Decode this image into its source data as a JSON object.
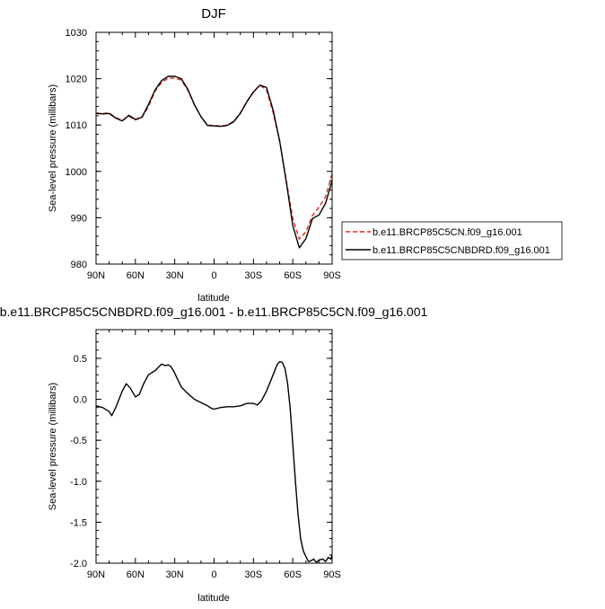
{
  "chart_data": [
    {
      "type": "line",
      "title": "DJF",
      "xlabel": "latitude",
      "ylabel": "Sea-level pressure (millibars)",
      "xlim": [
        90,
        -90
      ],
      "ylim": [
        980,
        1030
      ],
      "x_ticks": [
        90,
        60,
        30,
        0,
        -30,
        -60,
        -90
      ],
      "x_tick_labels": [
        "90N",
        "60N",
        "30N",
        "0",
        "30S",
        "60S",
        "90S"
      ],
      "y_ticks": [
        980,
        990,
        1000,
        1010,
        1020,
        1030
      ],
      "y_tick_labels": [
        "980",
        "990",
        "1000",
        "1010",
        "1020",
        "1030"
      ],
      "grid": false,
      "legend_position": "right",
      "x": [
        90,
        85,
        80,
        75,
        70,
        65,
        60,
        55,
        50,
        45,
        40,
        35,
        30,
        25,
        20,
        15,
        10,
        5,
        0,
        -5,
        -10,
        -15,
        -20,
        -25,
        -30,
        -35,
        -40,
        -45,
        -50,
        -55,
        -60,
        -65,
        -70,
        -75,
        -80,
        -85,
        -90
      ],
      "series": [
        {
          "name": "b.e11.BRCP85C5CN.f09_g16.001",
          "color": "#e8251c",
          "dash": "dashed",
          "values": [
            1012.6,
            1012.5,
            1012.6,
            1011.6,
            1011.0,
            1011.9,
            1011.1,
            1011.6,
            1014.0,
            1017.3,
            1019.2,
            1020.1,
            1020.1,
            1019.7,
            1017.5,
            1014.3,
            1011.8,
            1010.0,
            1009.9,
            1009.8,
            1010.0,
            1010.8,
            1012.6,
            1015.1,
            1017.2,
            1018.6,
            1017.6,
            1012.7,
            1006.5,
            998.1,
            989.8,
            985.4,
            987.0,
            990.5,
            992.3,
            994.5,
            999.5
          ]
        },
        {
          "name": "b.e11.BRCP85C5CNBDRD.f09_g16.001",
          "color": "#000000",
          "dash": "solid",
          "values": [
            1012.5,
            1012.4,
            1012.5,
            1011.5,
            1010.9,
            1012.1,
            1011.2,
            1011.7,
            1014.4,
            1017.6,
            1019.6,
            1020.5,
            1020.5,
            1020.0,
            1017.7,
            1014.4,
            1011.8,
            1009.9,
            1009.8,
            1009.7,
            1009.9,
            1010.7,
            1012.5,
            1015.0,
            1017.1,
            1018.6,
            1018.1,
            1013.2,
            1006.5,
            997.8,
            988.3,
            983.5,
            985.5,
            989.8,
            990.6,
            993.1,
            998.0
          ]
        }
      ]
    },
    {
      "type": "line",
      "title": "b.e11.BRCP85C5CNBDRD.f09_g16.001 - b.e11.BRCP85C5CN.f09_g16.001",
      "xlabel": "latitude",
      "ylabel": "Sea-level pressure (millibars)",
      "xlim": [
        90,
        -90
      ],
      "ylim": [
        -2.0,
        0.85
      ],
      "x_ticks": [
        90,
        60,
        30,
        0,
        -30,
        -60,
        -90
      ],
      "x_tick_labels": [
        "90N",
        "60N",
        "30N",
        "0",
        "30S",
        "60S",
        "90S"
      ],
      "y_ticks": [
        -2.0,
        -1.5,
        -1.0,
        -0.5,
        0.0,
        0.5
      ],
      "y_tick_labels": [
        "-2.0",
        "-1.5",
        "-1.0",
        "-0.5",
        "0.0",
        "0.5"
      ],
      "grid": false,
      "x": [
        90,
        85,
        80,
        78,
        75,
        70,
        67,
        64,
        60,
        57,
        54,
        50,
        45,
        40,
        37,
        35,
        33,
        31,
        28,
        25,
        20,
        15,
        10,
        5,
        2,
        0,
        -5,
        -10,
        -15,
        -20,
        -25,
        -30,
        -33,
        -36,
        -40,
        -45,
        -48,
        -50,
        -52,
        -54,
        -56,
        -58,
        -60,
        -62,
        -64,
        -66,
        -68,
        -70,
        -72,
        -74,
        -76,
        -78,
        -80,
        -83,
        -85,
        -87,
        -89,
        -90
      ],
      "series": [
        {
          "name": "",
          "color": "#000000",
          "dash": "solid",
          "values": [
            -0.08,
            -0.1,
            -0.15,
            -0.2,
            -0.1,
            0.1,
            0.19,
            0.14,
            0.03,
            0.06,
            0.18,
            0.3,
            0.35,
            0.43,
            0.41,
            0.42,
            0.4,
            0.35,
            0.25,
            0.15,
            0.07,
            0.0,
            -0.04,
            -0.08,
            -0.11,
            -0.12,
            -0.1,
            -0.09,
            -0.09,
            -0.08,
            -0.05,
            -0.05,
            -0.07,
            -0.02,
            0.1,
            0.3,
            0.42,
            0.46,
            0.45,
            0.38,
            0.2,
            -0.1,
            -0.55,
            -1.0,
            -1.4,
            -1.7,
            -1.85,
            -1.92,
            -1.98,
            -1.97,
            -1.95,
            -1.99,
            -1.96,
            -1.95,
            -1.98,
            -1.93,
            -1.95,
            -1.9
          ]
        }
      ]
    }
  ]
}
